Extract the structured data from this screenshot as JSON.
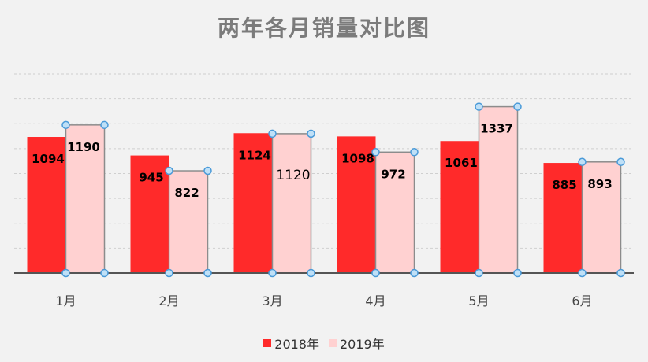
{
  "chart_data": {
    "type": "bar",
    "title": "两年各月销量对比图",
    "xlabel": "",
    "ylabel": "",
    "categories": [
      "1月",
      "2月",
      "3月",
      "4月",
      "5月",
      "6月"
    ],
    "series": [
      {
        "name": "2018年",
        "color": "#ff2a2a",
        "values": [
          1094,
          945,
          1124,
          1098,
          1061,
          885
        ]
      },
      {
        "name": "2019年",
        "color": "#ffd1d1",
        "values": [
          1190,
          822,
          1120,
          972,
          1337,
          893
        ]
      }
    ],
    "ylim": [
      0,
      1600
    ],
    "grid": true,
    "legend": "bottom",
    "selected_series": "2019年"
  }
}
